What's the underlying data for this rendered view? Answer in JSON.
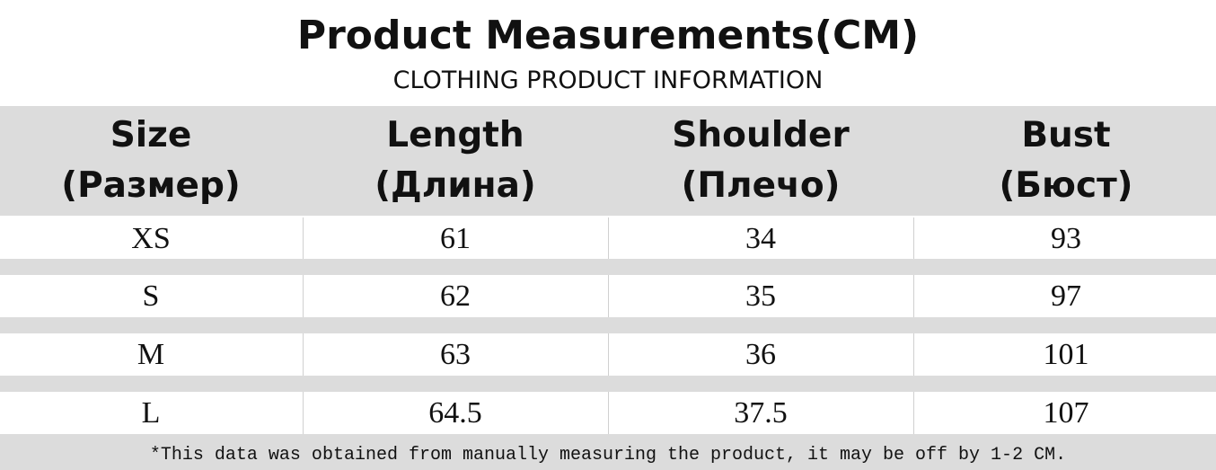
{
  "header": {
    "title": "Product Measurements(CM)",
    "subtitle": "CLOTHING PRODUCT INFORMATION"
  },
  "table": {
    "columns": [
      {
        "label": "Size",
        "translation": "(Размер)"
      },
      {
        "label": "Length",
        "translation": "(Длина)"
      },
      {
        "label": "Shoulder",
        "translation": "(Плечо)"
      },
      {
        "label": "Bust",
        "translation": "(Бюст)"
      }
    ],
    "rows": [
      [
        "XS",
        "61",
        "34",
        "93"
      ],
      [
        "S",
        "62",
        "35",
        "97"
      ],
      [
        "M",
        "63",
        "36",
        "101"
      ],
      [
        "L",
        "64.5",
        "37.5",
        "107"
      ]
    ]
  },
  "footnote": "*This data was obtained from manually measuring the product, it may be off by 1-2 CM."
}
